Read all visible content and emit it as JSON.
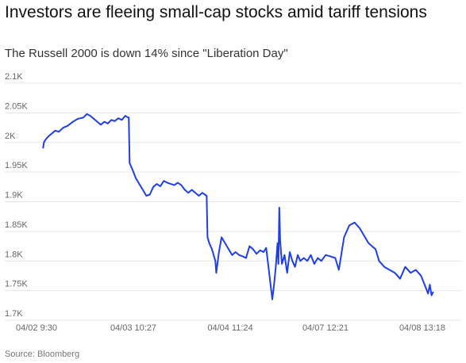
{
  "header": {
    "title": "Investors are fleeing small-cap stocks amid tariff tensions",
    "subtitle": "The Russell 2000 is down 14% since \"Liberation Day\""
  },
  "footer": {
    "source": "Source: Bloomberg"
  },
  "colors": {
    "line": "#1f3fe0",
    "grid": "#e6e6e6",
    "axis_text": "#666666"
  },
  "chart_data": {
    "type": "line",
    "title": "Investors are fleeing small-cap stocks amid tariff tensions",
    "subtitle": "The Russell 2000 is down 14% since \"Liberation Day\"",
    "xlabel": "",
    "ylabel": "",
    "ylim": [
      1700,
      2100
    ],
    "y_ticks": [
      {
        "value": 1700,
        "label": "1.7K"
      },
      {
        "value": 1750,
        "label": "1.75K"
      },
      {
        "value": 1800,
        "label": "1.8K"
      },
      {
        "value": 1850,
        "label": "1.85K"
      },
      {
        "value": 1900,
        "label": "1.9K"
      },
      {
        "value": 1950,
        "label": "1.95K"
      },
      {
        "value": 2000,
        "label": "2K"
      },
      {
        "value": 2050,
        "label": "2.05K"
      },
      {
        "value": 2100,
        "label": "2.1K"
      }
    ],
    "x_ticks": [
      {
        "x": 0,
        "label": "04/02 9:30"
      },
      {
        "x": 1,
        "label": "04/03 10:27"
      },
      {
        "x": 2,
        "label": "04/04 11:24"
      },
      {
        "x": 3,
        "label": "04/07 12:21"
      },
      {
        "x": 4,
        "label": "04/08 13:18"
      }
    ],
    "grid": true,
    "legend": "none",
    "series": [
      {
        "values": [
          [
            0.02,
            1990
          ],
          [
            0.03,
            2000
          ],
          [
            0.05,
            2005
          ],
          [
            0.08,
            2010
          ],
          [
            0.12,
            2015
          ],
          [
            0.16,
            2020
          ],
          [
            0.2,
            2018
          ],
          [
            0.25,
            2025
          ],
          [
            0.3,
            2028
          ],
          [
            0.36,
            2035
          ],
          [
            0.42,
            2040
          ],
          [
            0.48,
            2042
          ],
          [
            0.52,
            2048
          ],
          [
            0.56,
            2045
          ],
          [
            0.6,
            2040
          ],
          [
            0.64,
            2035
          ],
          [
            0.68,
            2030
          ],
          [
            0.72,
            2035
          ],
          [
            0.76,
            2032
          ],
          [
            0.8,
            2038
          ],
          [
            0.84,
            2036
          ],
          [
            0.88,
            2041
          ],
          [
            0.92,
            2038
          ],
          [
            0.96,
            2045
          ],
          [
            0.98,
            2043
          ],
          [
            1.0,
            2042
          ],
          [
            1.01,
            1965
          ],
          [
            1.04,
            1955
          ],
          [
            1.08,
            1940
          ],
          [
            1.12,
            1930
          ],
          [
            1.16,
            1920
          ],
          [
            1.2,
            1910
          ],
          [
            1.24,
            1912
          ],
          [
            1.28,
            1925
          ],
          [
            1.32,
            1930
          ],
          [
            1.36,
            1926
          ],
          [
            1.4,
            1935
          ],
          [
            1.44,
            1932
          ],
          [
            1.48,
            1930
          ],
          [
            1.52,
            1928
          ],
          [
            1.56,
            1932
          ],
          [
            1.6,
            1928
          ],
          [
            1.64,
            1920
          ],
          [
            1.68,
            1915
          ],
          [
            1.72,
            1920
          ],
          [
            1.76,
            1915
          ],
          [
            1.8,
            1910
          ],
          [
            1.84,
            1915
          ],
          [
            1.87,
            1912
          ],
          [
            1.89,
            1910
          ],
          [
            1.9,
            1840
          ],
          [
            1.92,
            1830
          ],
          [
            1.95,
            1820
          ],
          [
            1.97,
            1810
          ],
          [
            1.99,
            1800
          ],
          [
            2.0,
            1780
          ],
          [
            2.03,
            1815
          ],
          [
            2.06,
            1840
          ],
          [
            2.1,
            1830
          ],
          [
            2.14,
            1820
          ],
          [
            2.18,
            1810
          ],
          [
            2.22,
            1815
          ],
          [
            2.26,
            1810
          ],
          [
            2.3,
            1808
          ],
          [
            2.34,
            1805
          ],
          [
            2.38,
            1825
          ],
          [
            2.42,
            1820
          ],
          [
            2.46,
            1812
          ],
          [
            2.5,
            1818
          ],
          [
            2.54,
            1815
          ],
          [
            2.57,
            1822
          ],
          [
            2.6,
            1785
          ],
          [
            2.62,
            1760
          ],
          [
            2.64,
            1735
          ],
          [
            2.66,
            1760
          ],
          [
            2.68,
            1790
          ],
          [
            2.7,
            1830
          ],
          [
            2.71,
            1795
          ],
          [
            2.72,
            1890
          ],
          [
            2.73,
            1835
          ],
          [
            2.75,
            1795
          ],
          [
            2.78,
            1810
          ],
          [
            2.81,
            1780
          ],
          [
            2.84,
            1815
          ],
          [
            2.87,
            1800
          ],
          [
            2.9,
            1790
          ],
          [
            2.93,
            1810
          ],
          [
            2.96,
            1800
          ],
          [
            3.0,
            1805
          ],
          [
            3.04,
            1800
          ],
          [
            3.08,
            1810
          ],
          [
            3.12,
            1795
          ],
          [
            3.16,
            1805
          ],
          [
            3.2,
            1800
          ],
          [
            3.25,
            1810
          ],
          [
            3.3,
            1808
          ],
          [
            3.36,
            1805
          ],
          [
            3.4,
            1785
          ],
          [
            3.46,
            1840
          ],
          [
            3.52,
            1860
          ],
          [
            3.58,
            1865
          ],
          [
            3.64,
            1855
          ],
          [
            3.7,
            1840
          ],
          [
            3.74,
            1830
          ],
          [
            3.78,
            1825
          ],
          [
            3.82,
            1820
          ],
          [
            3.86,
            1800
          ],
          [
            3.92,
            1790
          ],
          [
            3.98,
            1785
          ],
          [
            4.04,
            1780
          ],
          [
            4.1,
            1770
          ],
          [
            4.16,
            1790
          ],
          [
            4.22,
            1780
          ],
          [
            4.28,
            1785
          ],
          [
            4.34,
            1775
          ],
          [
            4.38,
            1760
          ],
          [
            4.42,
            1745
          ],
          [
            4.44,
            1760
          ],
          [
            4.46,
            1742
          ],
          [
            4.48,
            1748
          ]
        ]
      }
    ]
  }
}
